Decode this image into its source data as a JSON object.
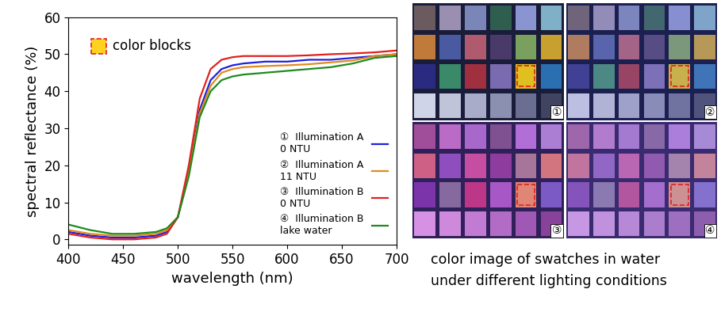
{
  "chart_data": {
    "type": "line",
    "xlabel": "wavelength (nm)",
    "ylabel": "spectral reflectance (%)",
    "annotation": "color blocks",
    "xlim": [
      400,
      700
    ],
    "xticks": [
      400,
      450,
      500,
      550,
      600,
      650,
      700
    ],
    "ylim": [
      -1.5,
      60
    ],
    "yticks": [
      0,
      10,
      20,
      30,
      40,
      50,
      60
    ],
    "grid": false,
    "legend": "lower right",
    "x": [
      400,
      420,
      440,
      460,
      480,
      490,
      500,
      510,
      520,
      530,
      540,
      550,
      560,
      580,
      600,
      620,
      640,
      660,
      680,
      700
    ],
    "series": [
      {
        "tag": "①",
        "name": "Illumination A\n0 NTU",
        "color": "#1f1fdd",
        "values": [
          2,
          1,
          0.5,
          0.5,
          1,
          2,
          6,
          18,
          35,
          43,
          46,
          47,
          47.5,
          48,
          48,
          48.5,
          48.5,
          49,
          49.5,
          50
        ]
      },
      {
        "tag": "②",
        "name": "Illumination A\n11 NTU",
        "color": "#e08a1e",
        "values": [
          2.5,
          1.5,
          1,
          1,
          1.5,
          2.5,
          6,
          18,
          34,
          41.5,
          45,
          46,
          46.5,
          46.8,
          47,
          47.3,
          47.8,
          48.3,
          49.5,
          50
        ]
      },
      {
        "tag": "③",
        "name": "Illumination B\n0 NTU",
        "color": "#e02020",
        "values": [
          1.5,
          0.5,
          0,
          0,
          0.5,
          1.5,
          6,
          20,
          38,
          46,
          48.5,
          49.2,
          49.5,
          49.5,
          49.5,
          49.7,
          50,
          50.2,
          50.5,
          51
        ]
      },
      {
        "tag": "④",
        "name": "Illumination B\nlake water",
        "color": "#1f8a1f",
        "values": [
          4,
          2.5,
          1.5,
          1.5,
          2,
          3,
          6,
          17,
          33,
          40,
          43,
          44,
          44.5,
          45,
          45.5,
          46,
          46.5,
          47.5,
          49,
          49.5
        ]
      }
    ]
  },
  "image_panels": {
    "labels": [
      "①",
      "②",
      "③",
      "④"
    ],
    "caption": "color image of swatches in water\nunder different lighting conditions"
  }
}
